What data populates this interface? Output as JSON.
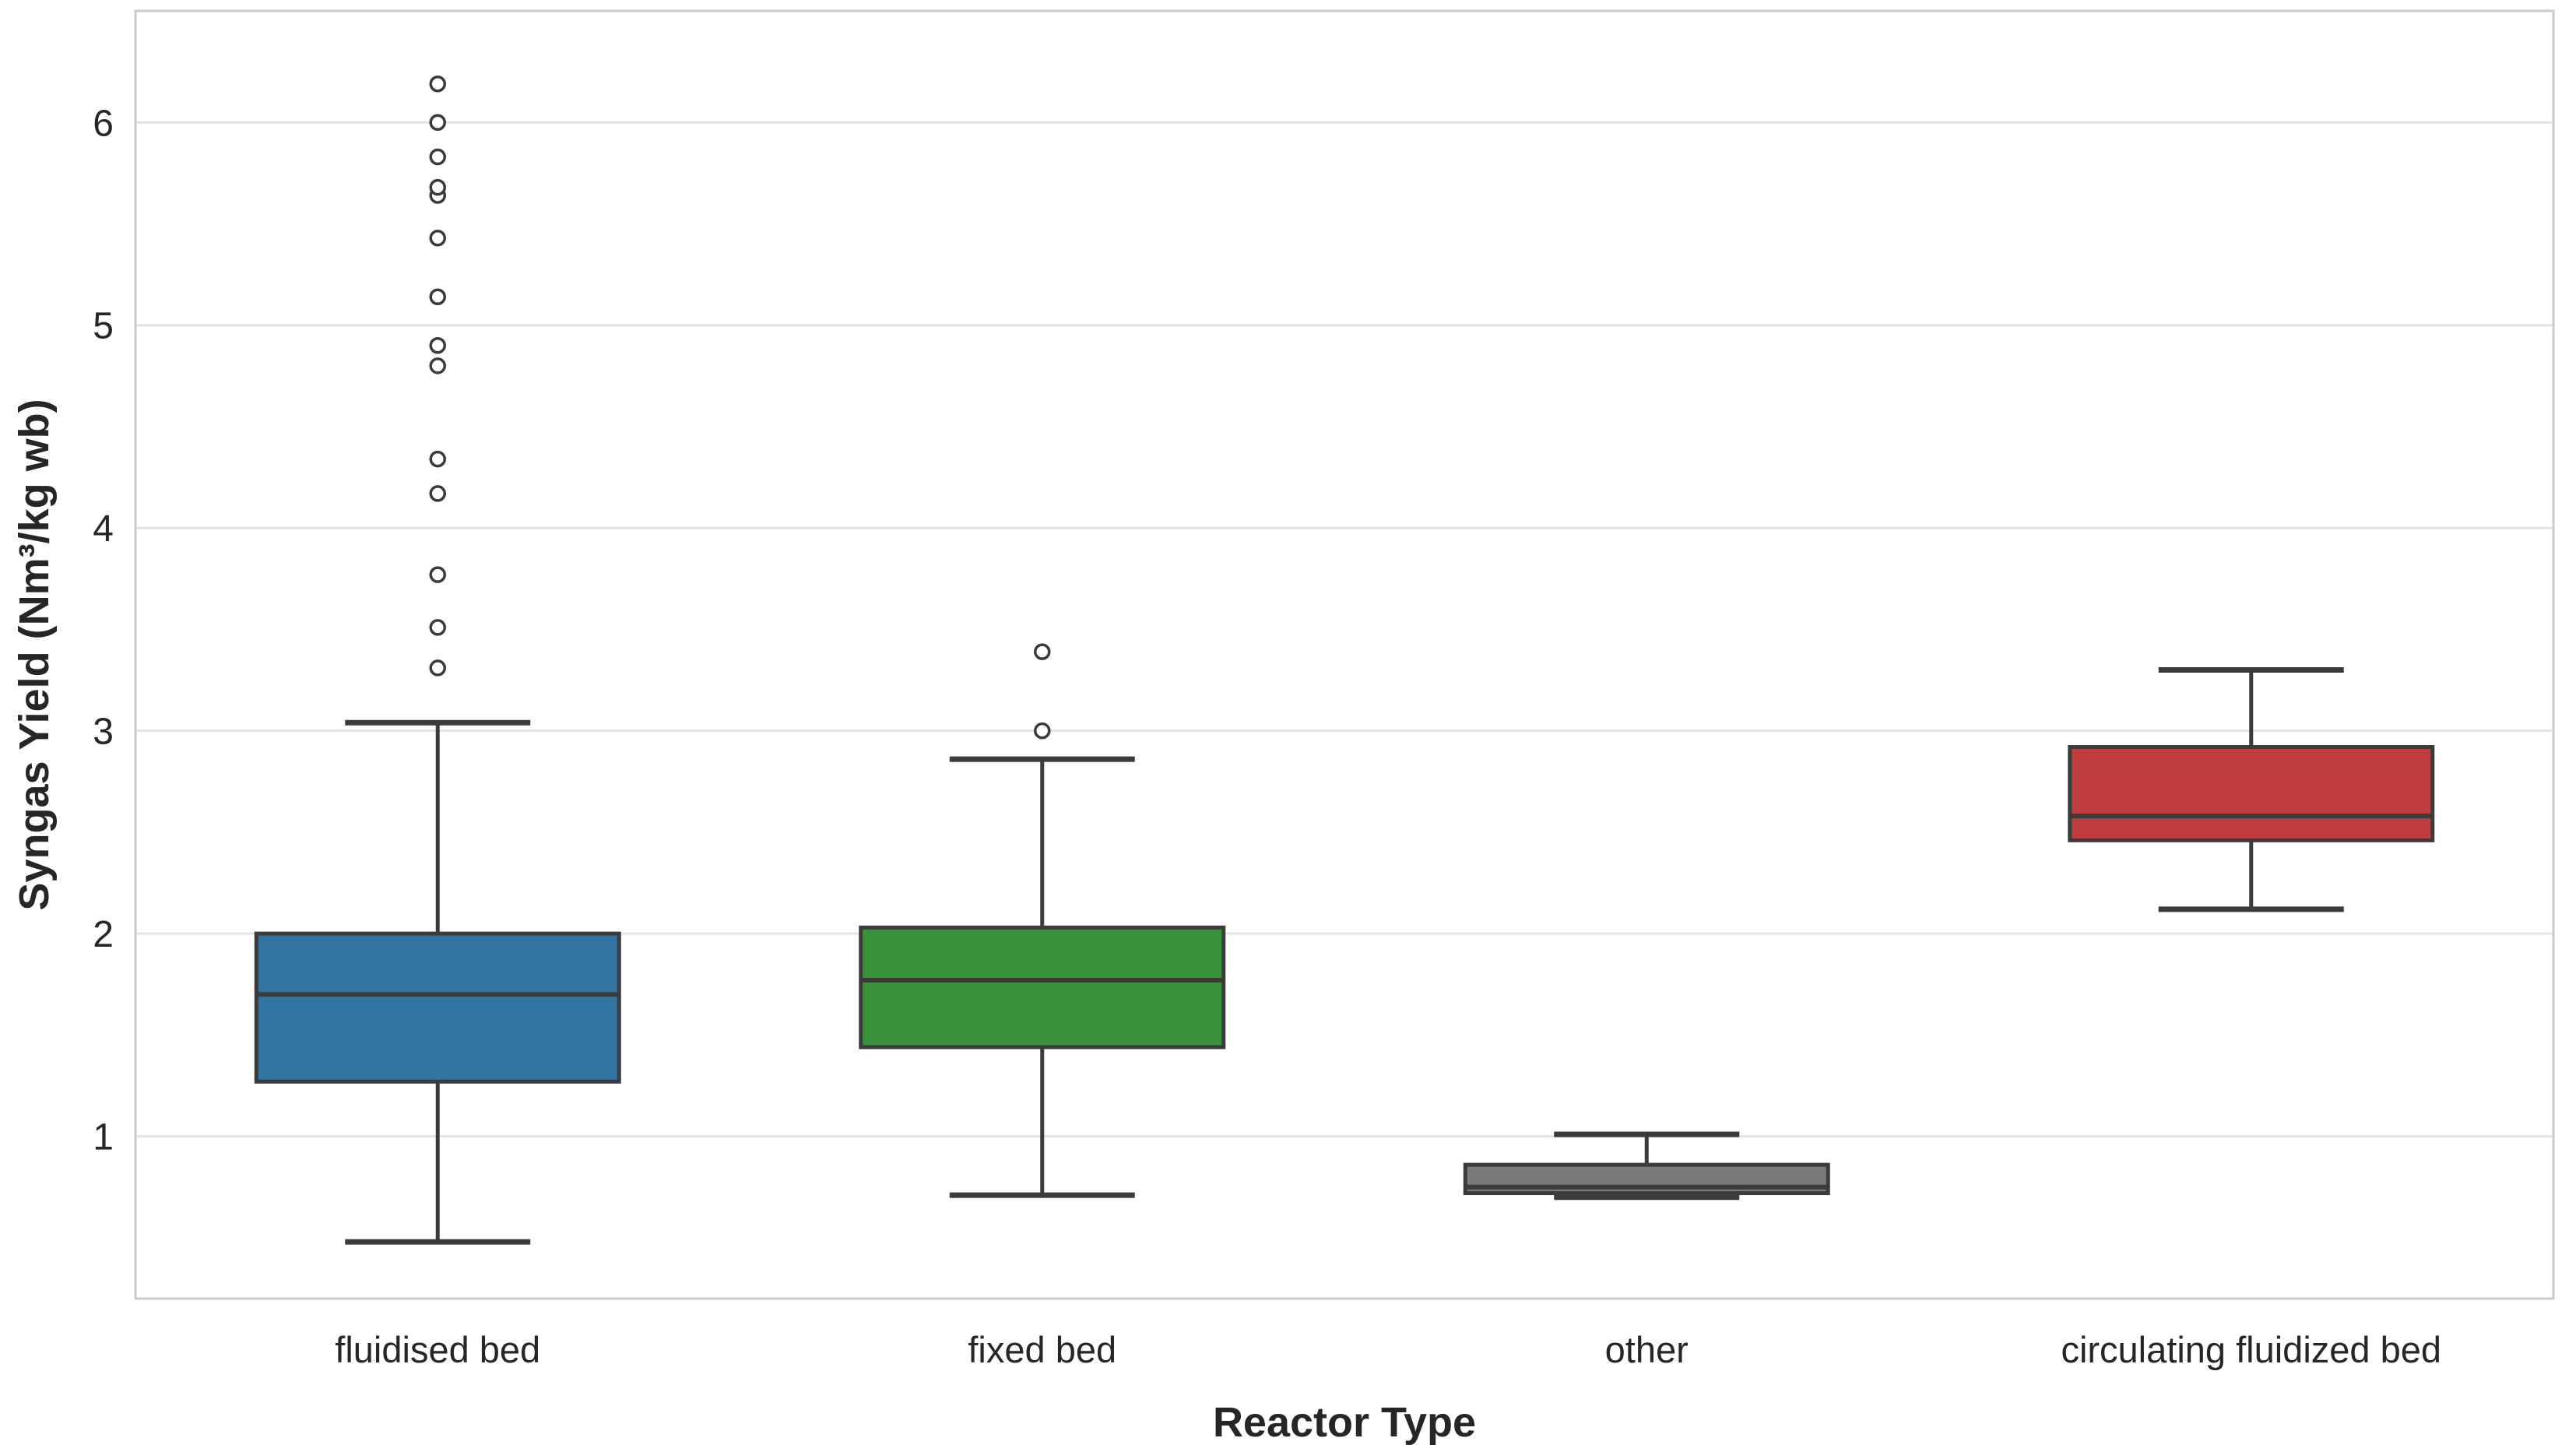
{
  "chart_data": {
    "type": "box",
    "title": "",
    "xlabel": "Reactor Type",
    "ylabel": "Syngas Yield (Nm³/kg wb)",
    "ylim": [
      0.2,
      6.55
    ],
    "yticks": [
      1,
      2,
      3,
      4,
      5,
      6
    ],
    "ytick_labels": [
      "1",
      "2",
      "3",
      "4",
      "5",
      "6"
    ],
    "grid": "horizontal",
    "legend": "none",
    "categories": [
      "fluidised bed",
      "fixed bed",
      "other",
      "circulating fluidized bed"
    ],
    "boxes": [
      {
        "category": "fluidised bed",
        "color": "#3274A1",
        "whisker_low": 0.48,
        "q1": 1.27,
        "median": 1.7,
        "q3": 2.0,
        "whisker_high": 3.04,
        "outliers": [
          3.31,
          3.51,
          3.77,
          4.17,
          4.34,
          4.8,
          4.9,
          5.14,
          5.43,
          5.64,
          5.68,
          5.83,
          6.0,
          6.19
        ]
      },
      {
        "category": "fixed bed",
        "color": "#3A923A",
        "whisker_low": 0.71,
        "q1": 1.44,
        "median": 1.77,
        "q3": 2.03,
        "whisker_high": 2.86,
        "outliers": [
          3.0,
          3.39
        ]
      },
      {
        "category": "other",
        "color": "#7A7A7A",
        "whisker_low": 0.7,
        "q1": 0.72,
        "median": 0.75,
        "q3": 0.86,
        "whisker_high": 1.01,
        "outliers": []
      },
      {
        "category": "circulating fluidized bed",
        "color": "#C03D3E",
        "whisker_low": 2.12,
        "q1": 2.46,
        "median": 2.58,
        "q3": 2.92,
        "whisker_high": 3.3,
        "outliers": []
      }
    ],
    "style": {
      "line_color": "#3B3B3B",
      "grid_color": "#E3E3E3",
      "spine_color": "#CBCBCB",
      "text_color": "#262626",
      "outlier_fill": "#FFFFFF"
    }
  }
}
